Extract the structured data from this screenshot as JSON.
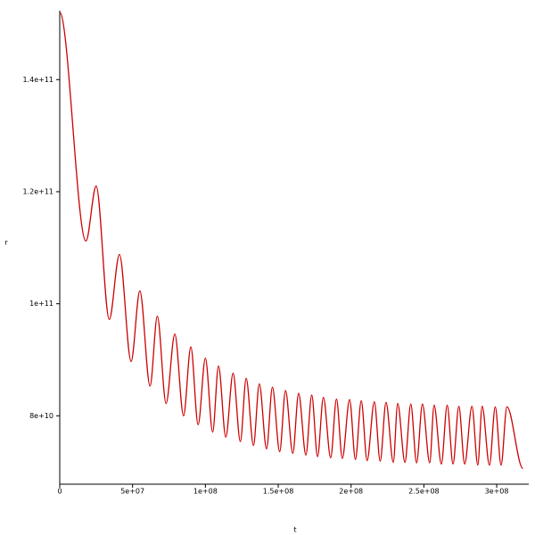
{
  "chart_data": {
    "type": "line",
    "xlabel": "t",
    "ylabel": "r",
    "x": [
      0,
      18000000.0,
      25000000.0,
      34000000.0,
      41000000.0,
      49000000.0,
      55000000.0,
      62000000.0,
      67000000.0,
      73000000.0,
      79000000.0,
      85000000.0,
      90000000.0,
      95000000.0,
      100000000.0,
      105000000.0,
      109000000.0,
      114000000.0,
      119000000.0,
      124000000.0,
      128000000.0,
      133000000.0,
      137000000.0,
      142000000.0,
      146000000.0,
      151000000.0,
      155000000.0,
      160000000.0,
      164000000.0,
      169000000.0,
      173000000.0,
      177000000.0,
      181000000.0,
      186000000.0,
      190000000.0,
      194000000.0,
      199000000.0,
      203000000.0,
      207000000.0,
      211000000.0,
      216000000.0,
      220000000.0,
      224000000.0,
      229000000.0,
      232000000.0,
      237000000.0,
      241000000.0,
      245000000.0,
      249000000.0,
      254000000.0,
      257000000.0,
      262000000.0,
      266000000.0,
      270000000.0,
      274000000.0,
      278000000.0,
      283000000.0,
      287000000.0,
      290000000.0,
      295000000.0,
      299000000.0,
      303000000.0,
      307000000.0,
      318000000.0
    ],
    "series": [
      {
        "color": "#cc0000",
        "values": [
          152000000000.0,
          111200000000.0,
          121000000000.0,
          97200000000.0,
          108800000000.0,
          89700000000.0,
          102300000000.0,
          85300000000.0,
          97800000000.0,
          82200000000.0,
          94600000000.0,
          80000000000.0,
          92300000000.0,
          78400000000.0,
          90300000000.0,
          77100000000.0,
          88900000000.0,
          76200000000.0,
          87600000000.0,
          75400000000.0,
          86700000000.0,
          74700000000.0,
          85700000000.0,
          74100000000.0,
          85100000000.0,
          73600000000.0,
          84500000000.0,
          73300000000.0,
          84000000000.0,
          73000000000.0,
          83700000000.0,
          72700000000.0,
          83300000000.0,
          72500000000.0,
          83000000000.0,
          72400000000.0,
          82900000000.0,
          72200000000.0,
          82700000000.0,
          72000000000.0,
          82500000000.0,
          71900000000.0,
          82400000000.0,
          71700000000.0,
          82200000000.0,
          71700000000.0,
          82100000000.0,
          71600000000.0,
          82100000000.0,
          71600000000.0,
          81900000000.0,
          71400000000.0,
          81900000000.0,
          71400000000.0,
          81700000000.0,
          71400000000.0,
          81700000000.0,
          71200000000.0,
          81700000000.0,
          71200000000.0,
          81600000000.0,
          71200000000.0,
          81600000000.0,
          70600000000.0
        ]
      }
    ],
    "xlim": [
      0,
      322000000.0
    ],
    "xticks": [
      0,
      {
        "value": 50000000.0,
        "label": "5e+07"
      },
      {
        "value": 100000000.0,
        "label": "1e+08"
      },
      {
        "value": 150000000.0,
        "label": "1.5e+08"
      },
      {
        "value": 200000000.0,
        "label": "2e+08"
      },
      {
        "value": 250000000.0,
        "label": "2.5e+08"
      },
      {
        "value": 300000000.0,
        "label": "3e+08"
      }
    ],
    "ylim": [
      67800000000.0,
      152300000000.0
    ],
    "yticks": [
      {
        "value": 80000000000.0,
        "label": "8e+10"
      },
      {
        "value": 100000000000.0,
        "label": "1e+11"
      },
      {
        "value": 120000000000.0,
        "label": "1.2e+11"
      },
      {
        "value": 140000000000.0,
        "label": "1.4e+11"
      }
    ]
  }
}
